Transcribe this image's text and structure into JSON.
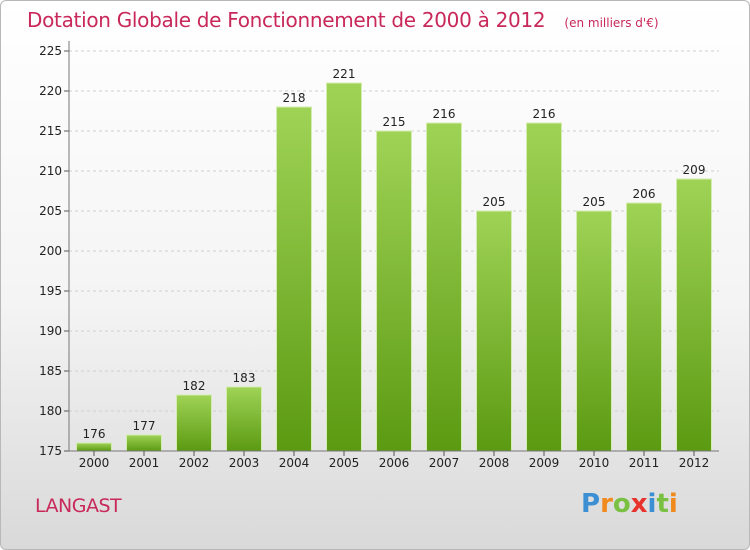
{
  "title": "Dotation Globale de Fonctionnement de 2000 à 2012",
  "unit_note": "(en milliers d'€)",
  "commune": "LANGAST",
  "logo": {
    "text": "Proxiti",
    "letters": [
      {
        "ch": "P",
        "color": "#3d8fd4"
      },
      {
        "ch": "r",
        "color": "#f08a1c"
      },
      {
        "ch": "o",
        "color": "#7ac143"
      },
      {
        "ch": "x",
        "color": "#e8322d"
      },
      {
        "ch": "i",
        "color": "#3d8fd4"
      },
      {
        "ch": "t",
        "color": "#7ac143"
      },
      {
        "ch": "i",
        "color": "#f08a1c"
      }
    ]
  },
  "colors": {
    "accent": "#c8285a",
    "bar_top": "#9fd356",
    "bar_bottom": "#5c9a12",
    "grid": "#cfcfcf",
    "axis_text": "#222222"
  },
  "chart_data": {
    "type": "bar",
    "categories": [
      "2000",
      "2001",
      "2002",
      "2003",
      "2004",
      "2005",
      "2006",
      "2007",
      "2008",
      "2009",
      "2010",
      "2011",
      "2012"
    ],
    "values": [
      176,
      177,
      182,
      183,
      218,
      221,
      215,
      216,
      205,
      216,
      205,
      206,
      209
    ],
    "ylim": [
      175,
      225
    ],
    "yticks": [
      175,
      180,
      185,
      190,
      195,
      200,
      205,
      210,
      215,
      220,
      225
    ],
    "grid": true,
    "legend": "none",
    "xlabel": "",
    "ylabel": ""
  }
}
